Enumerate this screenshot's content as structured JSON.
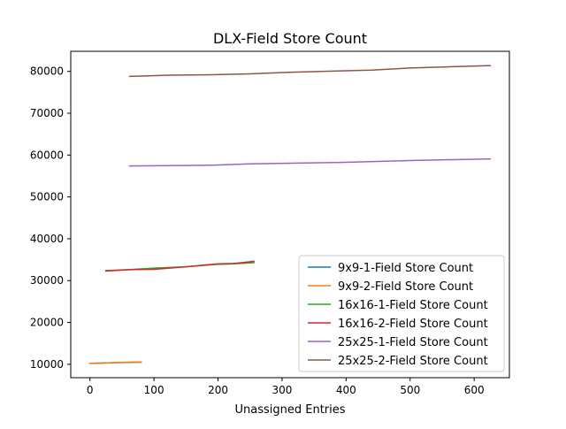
{
  "chart_data": {
    "type": "line",
    "title": "DLX-Field Store Count",
    "xlabel": "Unassigned Entries",
    "ylabel": "",
    "xlim": [
      -30,
      655
    ],
    "ylim": [
      6800,
      84800
    ],
    "xticks": [
      0,
      100,
      200,
      300,
      400,
      500,
      600
    ],
    "yticks": [
      10000,
      20000,
      30000,
      40000,
      50000,
      60000,
      70000,
      80000
    ],
    "grid": false,
    "legend_position": "lower-right",
    "series": [
      {
        "name": "9x9-1-Field Store Count",
        "color": "#1f77b4",
        "x": [
          0,
          20,
          40,
          60,
          80
        ],
        "y": [
          10250,
          10300,
          10400,
          10450,
          10500
        ]
      },
      {
        "name": "9x9-2-Field Store Count",
        "color": "#ff7f0e",
        "x": [
          0,
          20,
          40,
          60,
          80
        ],
        "y": [
          10200,
          10250,
          10450,
          10500,
          10550
        ]
      },
      {
        "name": "16x16-1-Field Store Count",
        "color": "#2ca02c",
        "x": [
          25,
          60,
          100,
          150,
          200,
          225,
          256
        ],
        "y": [
          32400,
          32600,
          33000,
          33300,
          33900,
          34000,
          34300
        ]
      },
      {
        "name": "16x16-2-Field Store Count",
        "color": "#d62728",
        "x": [
          25,
          60,
          100,
          150,
          200,
          225,
          256
        ],
        "y": [
          32300,
          32600,
          32700,
          33300,
          34000,
          34100,
          34600
        ]
      },
      {
        "name": "25x25-1-Field Store Count",
        "color": "#9467bd",
        "x": [
          62,
          125,
          190,
          250,
          380,
          500,
          625
        ],
        "y": [
          57400,
          57500,
          57600,
          57900,
          58200,
          58700,
          59100
        ]
      },
      {
        "name": "25x25-2-Field Store Count",
        "color": "#8c564b",
        "x": [
          62,
          125,
          190,
          250,
          310,
          440,
          500,
          625
        ],
        "y": [
          78800,
          79100,
          79200,
          79400,
          79800,
          80300,
          80800,
          81400
        ]
      }
    ]
  }
}
